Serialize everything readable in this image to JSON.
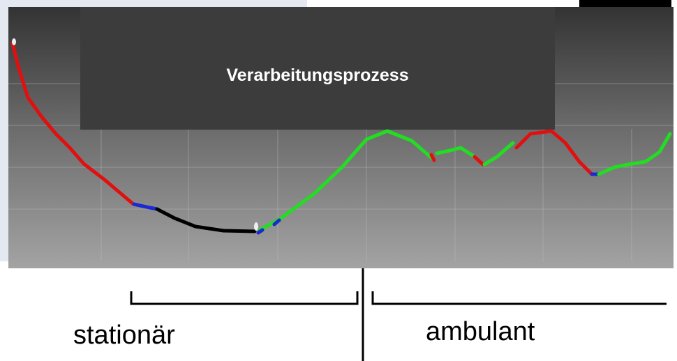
{
  "title": "Verarbeitungsprozess",
  "labels": {
    "left": "stationär",
    "right": "ambulant"
  }
}
